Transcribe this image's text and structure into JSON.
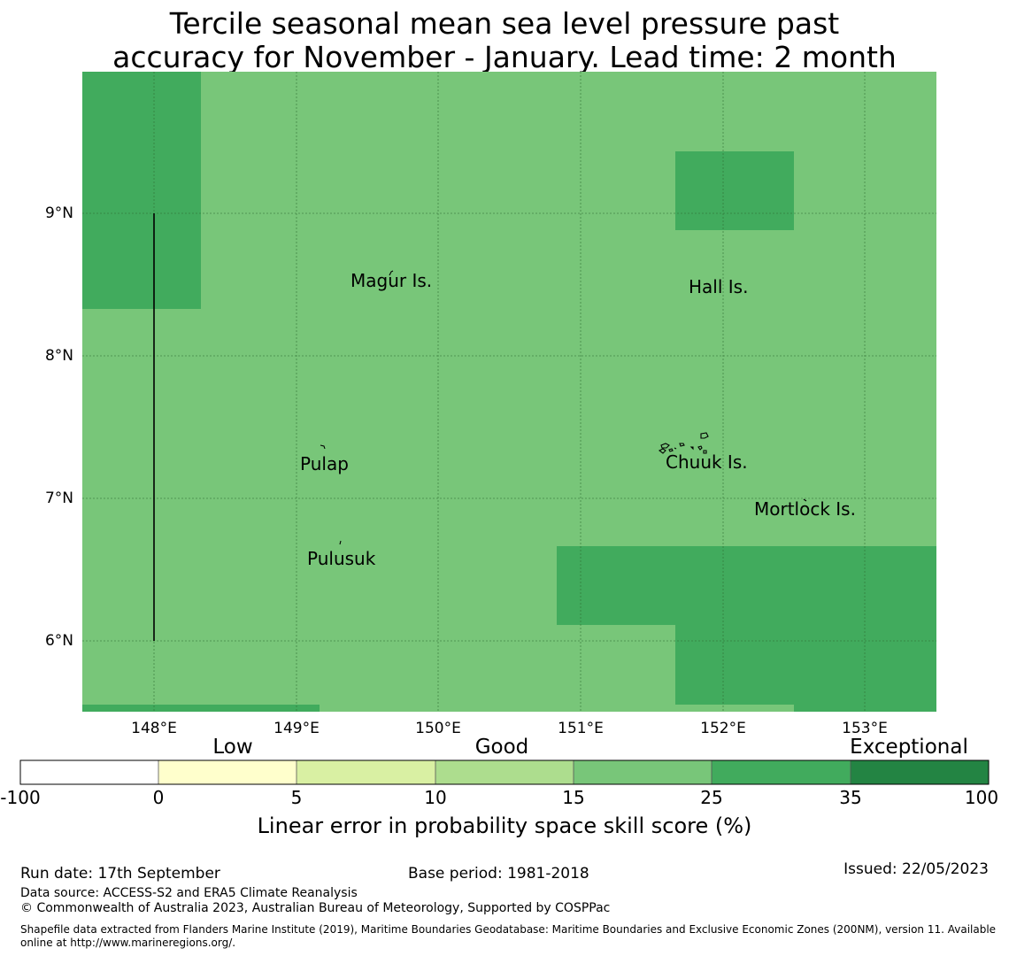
{
  "title": {
    "line1": "Tercile seasonal mean sea level pressure past",
    "line2": "accuracy for November - January. Lead time: 2 month"
  },
  "map": {
    "lat_labels": [
      "9°N",
      "8°N",
      "7°N",
      "6°N"
    ],
    "lon_labels": [
      "148°E",
      "149°E",
      "150°E",
      "151°E",
      "152°E",
      "153°E"
    ],
    "places": {
      "magur": "Magur Is.",
      "hall": "Hall Is.",
      "pulap": "Pulap",
      "chuuk": "Chuuk Is.",
      "mortlock": "Mortlock Is.",
      "pulusuk": "Pulusuk"
    },
    "colors": {
      "base": "#78c679",
      "high": "#41ab5d"
    }
  },
  "colorbar": {
    "words": {
      "low": "Low",
      "good": "Good",
      "exceptional": "Exceptional"
    },
    "ticks": [
      "-100",
      "0",
      "5",
      "10",
      "15",
      "25",
      "35",
      "100"
    ],
    "colors": [
      "#ffffff",
      "#ffffcc",
      "#d9f0a3",
      "#addd8e",
      "#78c679",
      "#41ab5d",
      "#238443"
    ],
    "label": "Linear error in probability space skill score (%)"
  },
  "footer": {
    "run_date": "Run date: 17th September",
    "base_period": "Base period: 1981-2018",
    "issued": "Issued: 22/05/2023",
    "data_source": "Data source: ACCESS-S2 and ERA5 Climate Reanalysis",
    "copyright": "© Commonwealth of Australia 2023, Australian Bureau of Meteorology, Supported by COSPPac",
    "shapefile_line1": "Shapefile data extracted from Flanders Marine Institute (2019), Maritime Boundaries Geodatabase: Maritime Boundaries and Exclusive Economic Zones (200NM), version 11. Available",
    "shapefile_line2": "online at http://www.marineregions.org/."
  }
}
